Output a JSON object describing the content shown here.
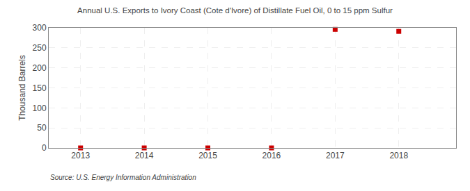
{
  "chart_data": {
    "type": "scatter",
    "title": "Annual U.S. Exports to Ivory Coast (Cote d'Ivore) of Distillate Fuel Oil, 0 to 15 ppm Sulfur",
    "ylabel": "Thousand Barrels",
    "annotations": [
      "Source: U.S. Energy Information Administration"
    ],
    "x": [
      2013,
      2014,
      2015,
      2016,
      2017,
      2018
    ],
    "values": [
      0,
      0,
      0,
      0,
      296,
      291
    ],
    "color": "#cc0000",
    "marker": "square",
    "xlim": [
      2012.5,
      2018.9
    ],
    "xticks": [
      2013,
      2014,
      2015,
      2016,
      2017,
      2018
    ],
    "ylim": [
      0,
      300
    ],
    "yticks": [
      0,
      50,
      100,
      150,
      200,
      250,
      300
    ],
    "grid": true
  }
}
